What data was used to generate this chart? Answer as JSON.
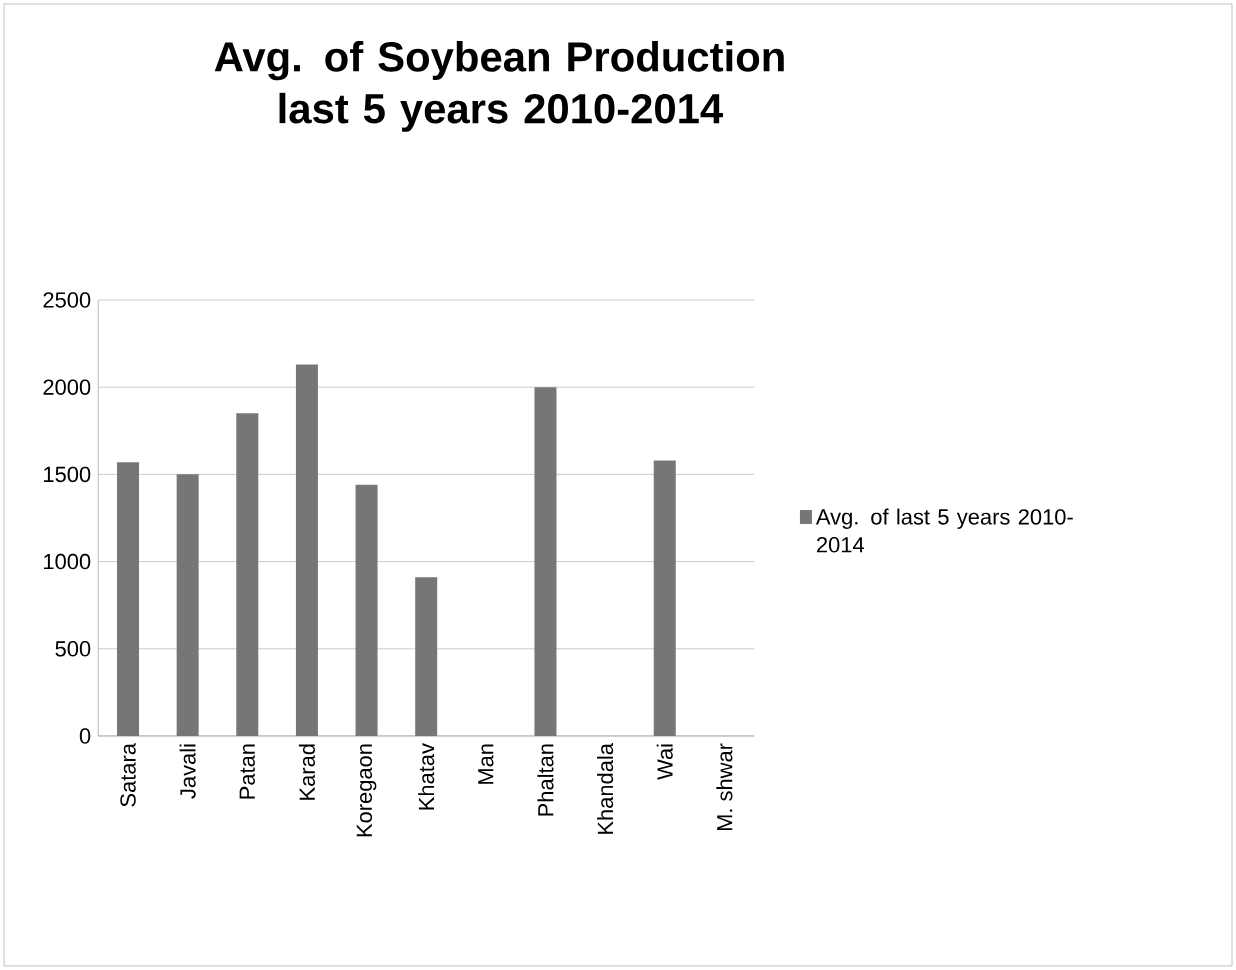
{
  "chart_data": {
    "type": "bar",
    "title": "Avg. of Soybean Production last 5 years 2010-2014",
    "categories": [
      "Satara",
      "Javali",
      "Patan",
      "Karad",
      "Koregaon",
      "Khatav",
      "Man",
      "Phaltan",
      "Khandala",
      "Wai",
      "M. shwar"
    ],
    "series": [
      {
        "name": "Avg. of last 5 years 2010-2014",
        "color": "#767676",
        "values": [
          1570,
          1500,
          1850,
          2130,
          1440,
          910,
          null,
          2000,
          null,
          1580,
          null
        ]
      }
    ],
    "ylim": [
      0,
      2500
    ],
    "yticks": [
      0,
      500,
      1000,
      1500,
      2000,
      2500
    ],
    "grid": "y",
    "legend": "right"
  }
}
